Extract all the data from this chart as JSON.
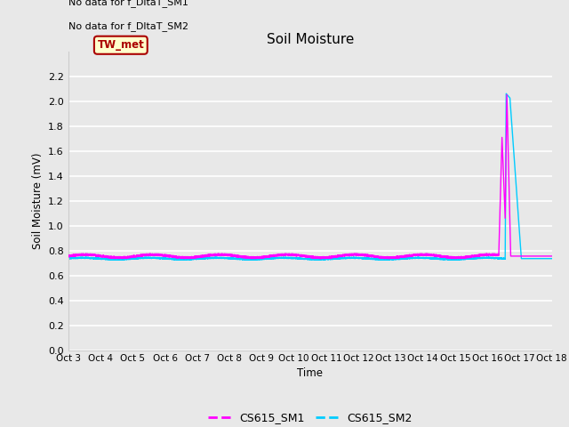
{
  "title": "Soil Moisture",
  "ylabel": "Soil Moisture (mV)",
  "xlabel": "Time",
  "no_data_text_1": "No data for f_DltaT_SM1",
  "no_data_text_2": "No data for f_DltaT_SM2",
  "legend_label": "TW_met",
  "legend_box_color": "#ffffcc",
  "legend_box_edge": "#aa0000",
  "legend_text_color": "#aa0000",
  "ylim": [
    0.0,
    2.4
  ],
  "yticks": [
    0.0,
    0.2,
    0.4,
    0.6,
    0.8,
    1.0,
    1.2,
    1.4,
    1.6,
    1.8,
    2.0,
    2.2
  ],
  "x_tick_labels": [
    "Oct 3",
    "Oct 4",
    "Oct 5",
    "Oct 6",
    "Oct 7",
    "Oct 8",
    "Oct 9",
    "Oct 10",
    "Oct 11",
    "Oct 12",
    "Oct 13",
    "Oct 14",
    "Oct 15",
    "Oct 16",
    "Oct 17",
    "Oct 18"
  ],
  "background_color": "#e8e8e8",
  "plot_bg_color": "#e8e8e8",
  "grid_color": "#ffffff",
  "sm1_color": "#ff00ff",
  "sm2_color": "#00ccff",
  "sm1_label": "CS615_SM1",
  "sm2_label": "CS615_SM2",
  "line_width": 1.0,
  "n_days": 15,
  "base_value_sm1": 0.755,
  "base_value_sm2": 0.735,
  "spike_peak_sm1": 2.07,
  "spike_peak_sm2": 2.06,
  "spike_intermediate_sm1": 1.72,
  "spike_intermediate_sm2": 1.62
}
